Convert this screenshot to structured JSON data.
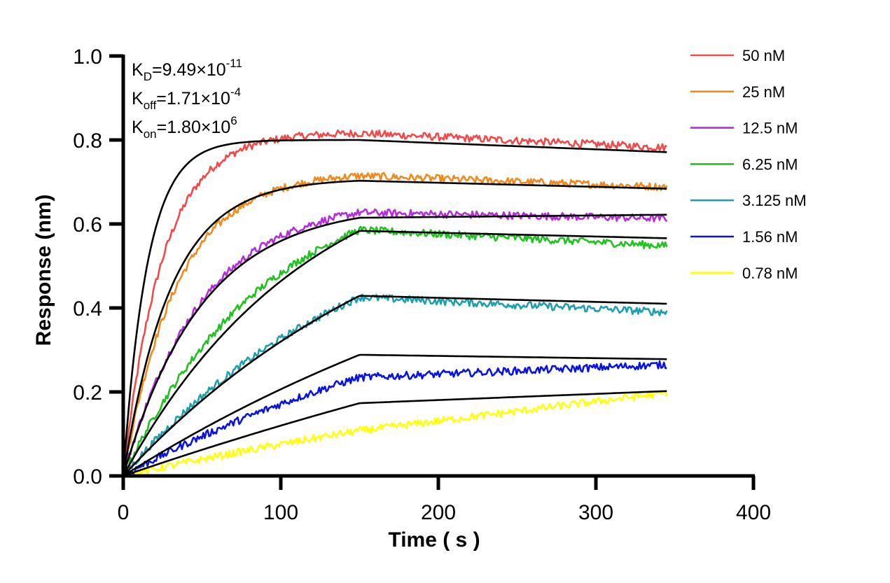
{
  "chart_data": {
    "type": "line",
    "xlabel": "Time ( s )",
    "ylabel": "Response (nm)",
    "xlim": [
      0,
      400
    ],
    "ylim": [
      0,
      1.0
    ],
    "x_ticks": [
      "0",
      "100",
      "200",
      "300",
      "400"
    ],
    "y_ticks": [
      "0.0",
      "0.2",
      "0.4",
      "0.6",
      "0.8",
      "1.0"
    ],
    "grid": false,
    "legend_position": "top-right",
    "annotations": [
      {
        "label": "K",
        "sub": "D",
        "value": "=9.49×10",
        "sup": "-11"
      },
      {
        "label": "K",
        "sub": "off",
        "value": "=1.71×10",
        "sup": "-4"
      },
      {
        "label": "K",
        "sub": "on",
        "value": "=1.80×10",
        "sup": "6"
      }
    ],
    "association_end": 150,
    "end_time": 345,
    "fit_color": "#000000",
    "series": [
      {
        "name": "50 nM",
        "color": "#f04a4a",
        "kobs": 0.04,
        "plateau": 0.818,
        "end_value": 0.782
      },
      {
        "name": "25 nM",
        "color": "#f08a1c",
        "kobs": 0.029,
        "plateau": 0.724,
        "end_value": 0.688
      },
      {
        "name": "12.5 nM",
        "color": "#b62ddb",
        "kobs": 0.02,
        "plateau": 0.66,
        "end_value": 0.613
      },
      {
        "name": "6.25 nM",
        "color": "#1fc21f",
        "kobs": 0.011,
        "plateau": 0.725,
        "end_value": 0.548
      },
      {
        "name": "3.125 nM",
        "color": "#1e9fae",
        "kobs": 0.0065,
        "plateau": 0.683,
        "end_value": 0.39
      },
      {
        "name": "1.56 nM",
        "color": "#0a14e0",
        "kobs": 0.004,
        "plateau": 0.52,
        "end_value": 0.265
      },
      {
        "name": "0.78 nM",
        "color": "#ffff10",
        "kobs": 0.002,
        "plateau": 0.415,
        "end_value": 0.198
      }
    ],
    "fits": [
      {
        "kobs": 0.065,
        "plateau": 0.8,
        "end_value": 0.771
      },
      {
        "kobs": 0.033,
        "plateau": 0.708,
        "end_value": 0.684
      },
      {
        "kobs": 0.02,
        "plateau": 0.647,
        "end_value": 0.622
      },
      {
        "kobs": 0.0085,
        "plateau": 0.81,
        "end_value": 0.566
      },
      {
        "kobs": 0.005,
        "plateau": 0.813,
        "end_value": 0.41
      },
      {
        "kobs": 0.003,
        "plateau": 0.796,
        "end_value": 0.278
      },
      {
        "kobs": 0.0015,
        "plateau": 0.86,
        "end_value": 0.202
      }
    ]
  }
}
